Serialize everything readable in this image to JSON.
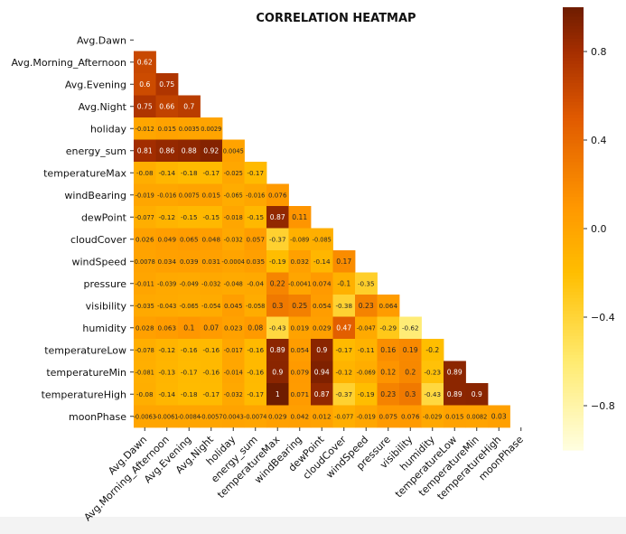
{
  "chart_data": {
    "type": "heatmap",
    "title": "CORRELATION HEATMAP",
    "xlabel": "",
    "ylabel": "",
    "variables": [
      "Avg.Dawn",
      "Avg.Morning_Afternoon",
      "Avg.Evening",
      "Avg.Night",
      "holiday",
      "energy_sum",
      "temperatureMax",
      "windBearing",
      "dewPoint",
      "cloudCover",
      "windSpeed",
      "pressure",
      "visibility",
      "humidity",
      "temperatureLow",
      "temperatureMin",
      "temperatureHigh",
      "moonPhase"
    ],
    "mask": "upper-triangle",
    "values": [
      [],
      [
        0.62
      ],
      [
        0.6,
        0.75
      ],
      [
        0.75,
        0.66,
        0.7
      ],
      [
        -0.012,
        0.015,
        0.0035,
        0.0029
      ],
      [
        0.81,
        0.86,
        0.88,
        0.92,
        0.0045
      ],
      [
        -0.08,
        -0.14,
        -0.18,
        -0.17,
        -0.025,
        -0.17
      ],
      [
        -0.019,
        -0.016,
        0.0075,
        0.015,
        -0.065,
        -0.016,
        0.076
      ],
      [
        -0.077,
        -0.12,
        -0.15,
        -0.15,
        -0.018,
        -0.15,
        0.87,
        0.11
      ],
      [
        0.026,
        0.049,
        0.065,
        0.048,
        -0.032,
        0.057,
        -0.37,
        -0.089,
        -0.085
      ],
      [
        0.0078,
        0.034,
        0.039,
        0.031,
        -0.0004,
        0.035,
        -0.19,
        0.032,
        -0.14,
        0.17
      ],
      [
        -0.011,
        -0.039,
        -0.049,
        -0.032,
        -0.048,
        -0.04,
        0.22,
        -0.0041,
        0.074,
        -0.1,
        -0.35
      ],
      [
        -0.035,
        -0.043,
        -0.065,
        -0.054,
        0.045,
        -0.058,
        0.3,
        0.25,
        0.054,
        -0.38,
        0.23,
        0.064
      ],
      [
        0.028,
        0.063,
        0.1,
        0.07,
        0.023,
        0.08,
        -0.43,
        0.019,
        0.029,
        0.47,
        -0.047,
        -0.29,
        -0.62
      ],
      [
        -0.078,
        -0.12,
        -0.16,
        -0.16,
        -0.017,
        -0.16,
        0.89,
        0.054,
        0.9,
        -0.17,
        -0.11,
        0.16,
        0.19,
        -0.2
      ],
      [
        -0.081,
        -0.13,
        -0.17,
        -0.16,
        -0.014,
        -0.16,
        0.9,
        0.079,
        0.94,
        -0.12,
        -0.069,
        0.12,
        0.2,
        -0.23,
        0.89
      ],
      [
        -0.08,
        -0.14,
        -0.18,
        -0.17,
        -0.032,
        -0.17,
        1,
        0.071,
        0.87,
        -0.37,
        -0.19,
        0.23,
        0.3,
        -0.43,
        0.89,
        0.9
      ],
      [
        -0.0063,
        -0.0061,
        -0.0084,
        -0.0057,
        0.0043,
        -0.0074,
        0.029,
        0.042,
        0.012,
        -0.077,
        -0.019,
        0.075,
        0.076,
        -0.029,
        0.015,
        0.0082,
        0.03
      ]
    ],
    "labels": [
      [],
      [
        "0.62"
      ],
      [
        "0.6",
        "0.75"
      ],
      [
        "0.75",
        "0.66",
        "0.7"
      ],
      [
        "-0.012",
        "0.015",
        "0.0035",
        "0.0029"
      ],
      [
        "0.81",
        "0.86",
        "0.88",
        "0.92",
        "0.0045"
      ],
      [
        "-0.08",
        "-0.14",
        "-0.18",
        "-0.17",
        "-0.025",
        "-0.17"
      ],
      [
        "-0.019",
        "-0.016",
        "0.0075",
        "0.015",
        "-0.065",
        "-0.016",
        "0.076"
      ],
      [
        "-0.077",
        "-0.12",
        "-0.15",
        "-0.15",
        "-0.018",
        "-0.15",
        "0.87",
        "0.11"
      ],
      [
        "0.026",
        "0.049",
        "0.065",
        "0.048",
        "-0.032",
        "0.057",
        "-0.37",
        "-0.089",
        "-0.085"
      ],
      [
        "0.0078",
        "0.034",
        "0.039",
        "0.031",
        "-0.0004",
        "0.035",
        "-0.19",
        "0.032",
        "-0.14",
        "0.17"
      ],
      [
        "-0.011",
        "-0.039",
        "-0.049",
        "-0.032",
        "-0.048",
        "-0.04",
        "0.22",
        "-0.0041",
        "0.074",
        "-0.1",
        "-0.35"
      ],
      [
        "-0.035",
        "-0.043",
        "-0.065",
        "-0.054",
        "0.045",
        "-0.058",
        "0.3",
        "0.25",
        "0.054",
        "-0.38",
        "0.23",
        "0.064"
      ],
      [
        "0.028",
        "0.063",
        "0.1",
        "0.07",
        "0.023",
        "0.08",
        "-0.43",
        "0.019",
        "0.029",
        "0.47",
        "-0.047",
        "-0.29",
        "-0.62"
      ],
      [
        "-0.078",
        "-0.12",
        "-0.16",
        "-0.16",
        "-0.017",
        "-0.16",
        "0.89",
        "0.054",
        "0.9",
        "-0.17",
        "-0.11",
        "0.16",
        "0.19",
        "-0.2"
      ],
      [
        "-0.081",
        "-0.13",
        "-0.17",
        "-0.16",
        "-0.014",
        "-0.16",
        "0.9",
        "0.079",
        "0.94",
        "-0.12",
        "-0.069",
        "0.12",
        "0.2",
        "-0.23",
        "0.89"
      ],
      [
        "-0.08",
        "-0.14",
        "-0.18",
        "-0.17",
        "-0.032",
        "-0.17",
        "1",
        "0.071",
        "0.87",
        "-0.37",
        "-0.19",
        "0.23",
        "0.3",
        "-0.43",
        "0.89",
        "0.9"
      ],
      [
        "-0.0063",
        "-0.0061",
        "-0.0084",
        "-0.0057",
        "0.0043",
        "-0.0074",
        "0.029",
        "0.042",
        "0.012",
        "-0.077",
        "-0.019",
        "0.075",
        "0.076",
        "-0.029",
        "0.015",
        "0.0082",
        "0.03"
      ]
    ],
    "colorbar": {
      "range": [
        -1,
        1
      ],
      "ticks": [
        0.8,
        0.4,
        0.0,
        -0.4,
        -0.8
      ],
      "tick_labels": [
        "0.8",
        "0.4",
        "0.0",
        "−0.4",
        "−0.8"
      ]
    },
    "colormap": {
      "name": "afmhot_r",
      "stops": [
        [
          -1,
          "#fffee0"
        ],
        [
          -0.6,
          "#ffeb70"
        ],
        [
          -0.2,
          "#ffbe00"
        ],
        [
          0.1,
          "#ff9700"
        ],
        [
          0.5,
          "#e05a00"
        ],
        [
          0.8,
          "#a52e00"
        ],
        [
          1.0,
          "#6e1c00"
        ]
      ]
    },
    "grid": false,
    "legend": "colorbar-right"
  }
}
